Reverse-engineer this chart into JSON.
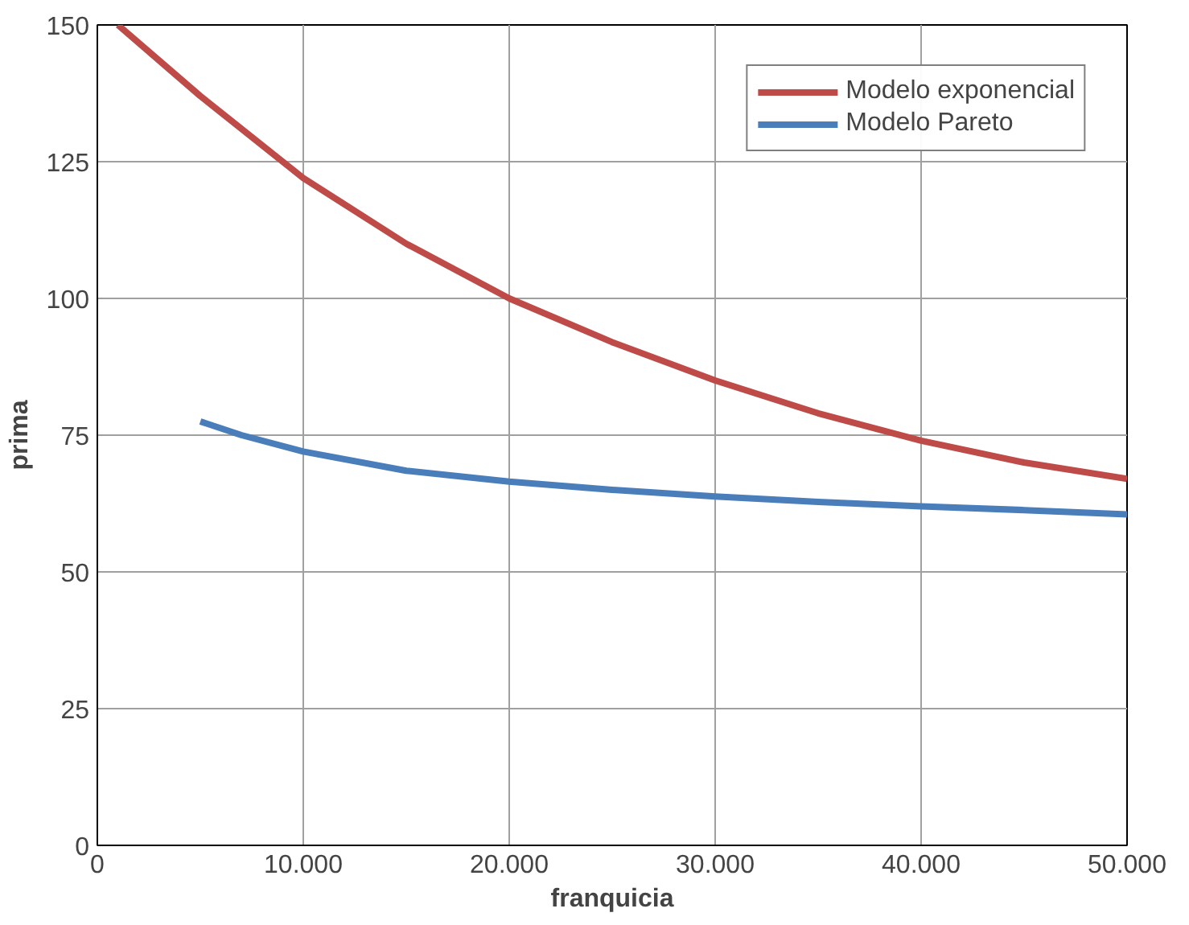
{
  "chart_data": {
    "type": "line",
    "xlabel": "franquicia",
    "ylabel": "prima",
    "xlim": [
      0,
      50000
    ],
    "ylim": [
      0,
      150
    ],
    "xticks": [
      0,
      {
        "value": 10000,
        "label": "10.000"
      },
      {
        "value": 20000,
        "label": "20.000"
      },
      {
        "value": 30000,
        "label": "30.000"
      },
      {
        "value": 40000,
        "label": "40.000"
      },
      {
        "value": 50000,
        "label": "50.000"
      }
    ],
    "yticks": [
      0,
      25,
      50,
      75,
      100,
      125,
      150
    ],
    "grid": true,
    "legend": "top right",
    "marker": "none",
    "line_style": "solid",
    "series": [
      {
        "name": "Modelo exponencial",
        "color": "#be4b48",
        "x": [
          1000,
          5000,
          10000,
          15000,
          20000,
          25000,
          30000,
          35000,
          40000,
          45000,
          50000
        ],
        "values": [
          150,
          137,
          122,
          110,
          100,
          92,
          85,
          79,
          74,
          70,
          67
        ]
      },
      {
        "name": "Modelo Pareto",
        "color": "#4a7ebb",
        "x": [
          5000,
          7000,
          10000,
          15000,
          20000,
          25000,
          30000,
          35000,
          40000,
          45000,
          50000
        ],
        "values": [
          77.5,
          75,
          72,
          68.5,
          66.5,
          65,
          63.8,
          62.8,
          62,
          61.3,
          60.5
        ]
      }
    ]
  }
}
